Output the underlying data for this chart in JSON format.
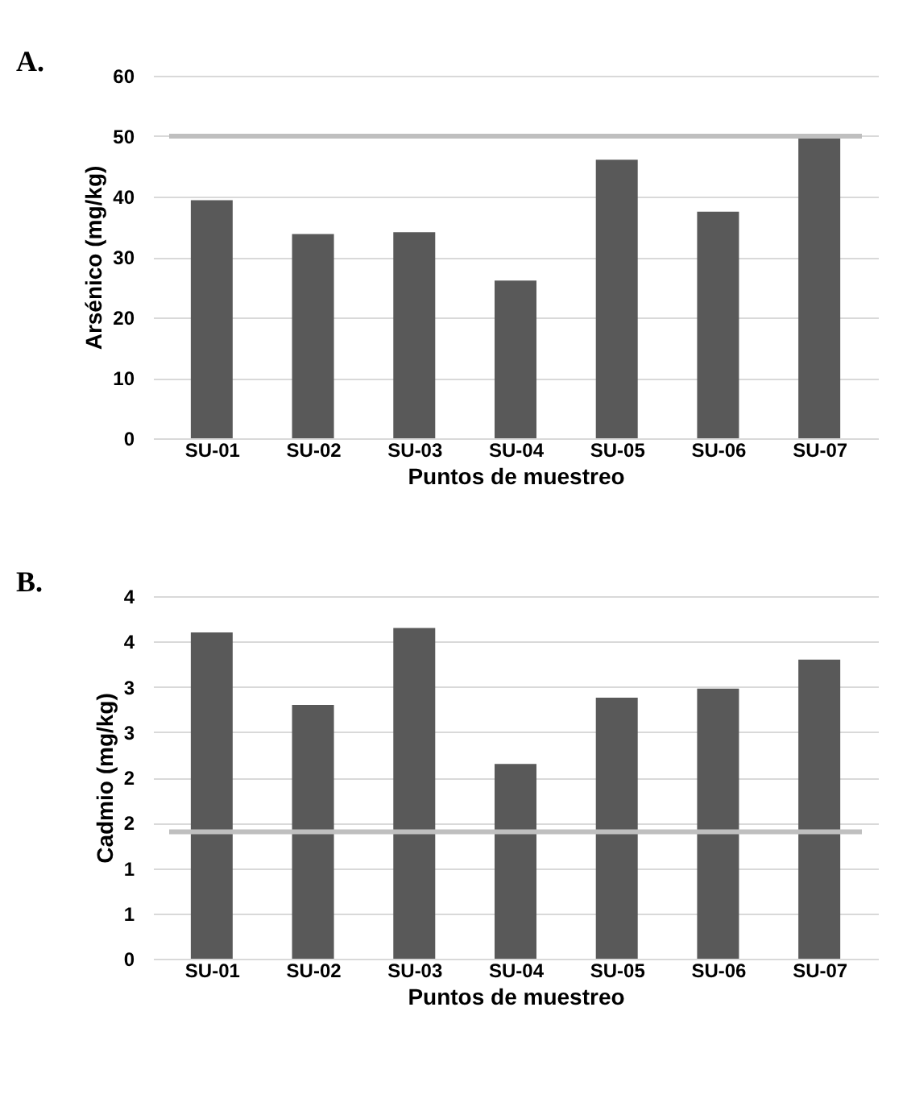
{
  "chart_data": [
    {
      "type": "bar",
      "xlabel": "Puntos de muestreo",
      "ylabel": "Arsénico (mg/kg)",
      "annotations": [
        "A."
      ],
      "categories": [
        "SU-01",
        "SU-02",
        "SU-03",
        "SU-04",
        "SU-05",
        "SU-06",
        "SU-07"
      ],
      "series": [
        {
          "color": "#595959",
          "values": [
            39.4,
            33.8,
            34.1,
            26.1,
            46.1,
            37.5,
            50.4
          ]
        }
      ],
      "ylim": [
        0,
        60
      ],
      "yticks": [
        0,
        10,
        20,
        30,
        40,
        50,
        60
      ],
      "grid": "y",
      "ref_lines": [
        {
          "axis": "y",
          "value": 50,
          "color": "#bfbfbf"
        }
      ]
    },
    {
      "type": "bar",
      "xlabel": "Puntos de muestreo",
      "ylabel": "Cadmio (mg/kg)",
      "annotations": [
        "B."
      ],
      "categories": [
        "SU-01",
        "SU-02",
        "SU-03",
        "SU-04",
        "SU-05",
        "SU-06",
        "SU-07"
      ],
      "series": [
        {
          "color": "#595959",
          "values": [
            3.6,
            2.8,
            3.65,
            2.15,
            2.88,
            2.98,
            3.3
          ]
        }
      ],
      "ylim": [
        0,
        4
      ],
      "yticks": [
        0,
        {
          "value": 0.5,
          "label": "1"
        },
        1,
        {
          "value": 1.5,
          "label": "2"
        },
        2,
        {
          "value": 2.5,
          "label": "3"
        },
        3,
        {
          "value": 3.5,
          "label": "4"
        },
        4
      ],
      "grid": "y",
      "ref_lines": [
        {
          "axis": "y",
          "value": 1.4,
          "color": "#bfbfbf"
        }
      ]
    }
  ]
}
